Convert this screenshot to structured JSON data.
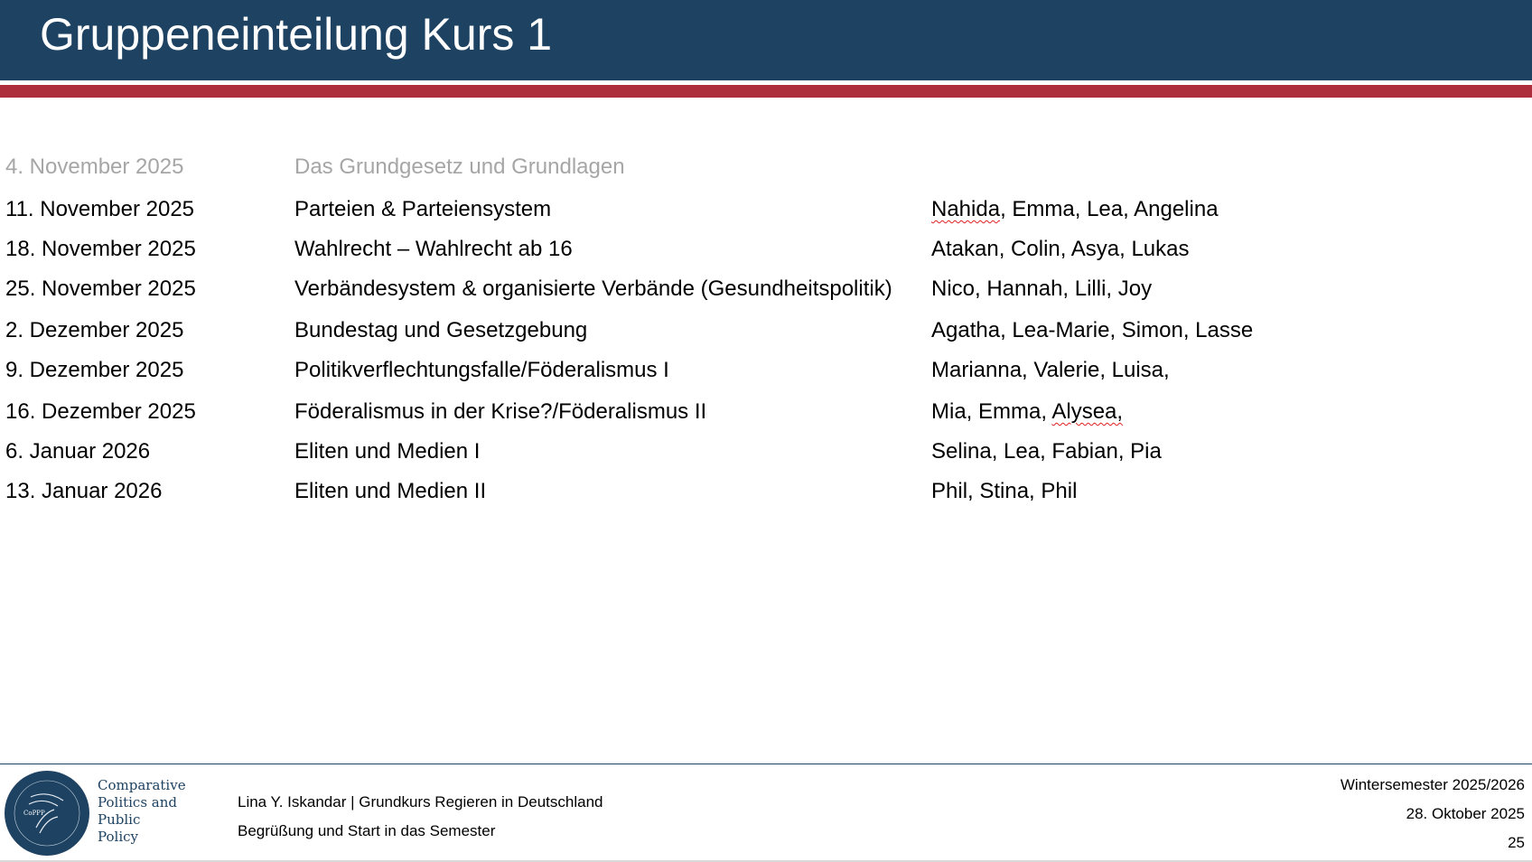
{
  "header": {
    "title": "Gruppeneinteilung Kurs 1"
  },
  "colors": {
    "header_bg": "#1e4262",
    "accent_red": "#ae2d3d",
    "past_row_text": "#a6a6a6"
  },
  "schedule": [
    {
      "date": "4. November 2025",
      "topic": "Das Grundgesetz und Grundlagen",
      "group": "",
      "past": true
    },
    {
      "date": "11. November 2025",
      "topic": "Parteien & Parteiensystem",
      "group_first": "Nahida",
      "group": ", Emma, Lea, Angelina"
    },
    {
      "date": "18. November 2025",
      "topic": "Wahlrecht – Wahlrecht ab 16",
      "group": "Atakan, Colin, Asya, Lukas"
    },
    {
      "date": "25. November 2025",
      "topic": "Verbändesystem & organisierte Verbände (Gesundheitspolitik)",
      "group": "Nico, Hannah, Lilli, Joy"
    },
    {
      "date": "2. Dezember 2025",
      "topic": "Bundestag und Gesetzgebung",
      "group": "Agatha, Lea-Marie, Simon, Lasse"
    },
    {
      "date": "9. Dezember 2025",
      "topic": "Politikverflechtungsfalle/Föderalismus I",
      "group": "Marianna, Valerie, Luisa,"
    },
    {
      "date": "16. Dezember 2025",
      "topic": "Föderalismus in der Krise?/Föderalismus II",
      "group": "Mia, Emma, ",
      "group_last": "Alysea,"
    },
    {
      "date": "6. Januar 2026",
      "topic": "Eliten und Medien I",
      "group": "Selina, Lea, Fabian, Pia"
    },
    {
      "date": "13. Januar 2026",
      "topic": "Eliten und Medien  II",
      "group": "Phil, Stina, Phil"
    }
  ],
  "footer": {
    "logo_text": [
      "Comparative",
      "Politics and",
      "Public",
      "Policy"
    ],
    "logo_seal_text": "CoPPP Comparative Politics and Public Policy",
    "line1": "Lina Y. Iskandar | Grundkurs Regieren in Deutschland",
    "line2": "Begrüßung und Start in das Semester",
    "semester": "Wintersemester 2025/2026",
    "date": "28. Oktober 2025",
    "page": "25"
  }
}
